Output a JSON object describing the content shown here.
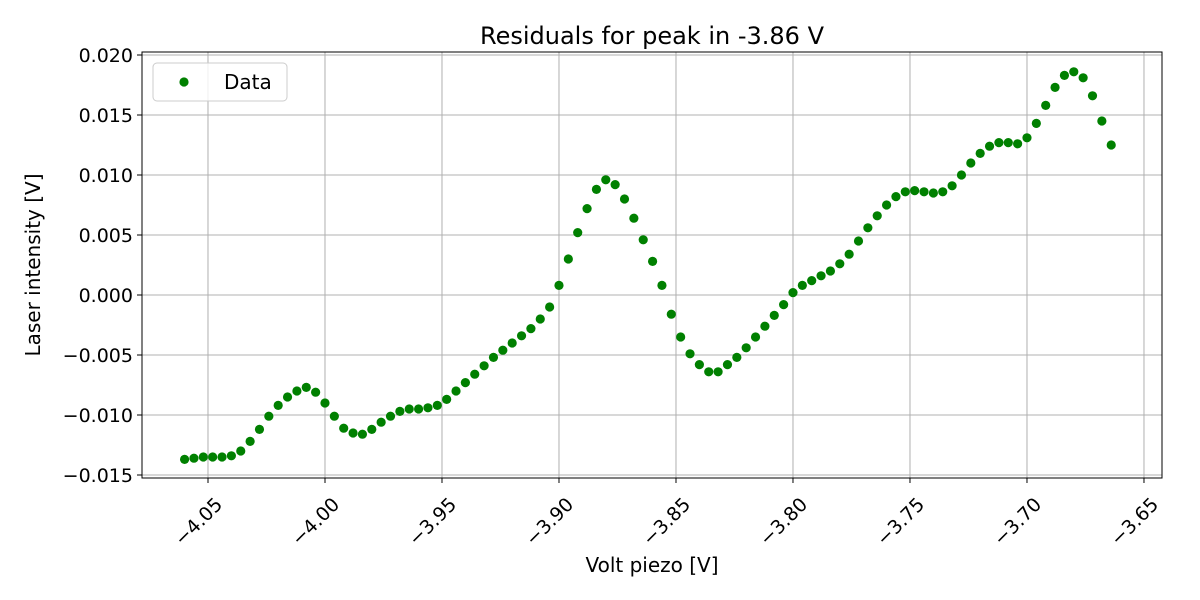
{
  "chart_data": {
    "type": "scatter",
    "title": "Residuals for peak in -3.86 V",
    "x_label": "Volt piezo [V]",
    "y_label": "Laser intensity [V]",
    "xlim": [
      -4.0782,
      -3.6423
    ],
    "ylim": [
      -0.01525,
      0.02025
    ],
    "grid": true,
    "legend": "upper left",
    "xticks": [
      {
        "value": -4.05,
        "label": "−4.05"
      },
      {
        "value": -4.0,
        "label": "−4.00"
      },
      {
        "value": -3.95,
        "label": "−3.95"
      },
      {
        "value": -3.9,
        "label": "−3.90"
      },
      {
        "value": -3.85,
        "label": "−3.85"
      },
      {
        "value": -3.8,
        "label": "−3.80"
      },
      {
        "value": -3.75,
        "label": "−3.75"
      },
      {
        "value": -3.7,
        "label": "−3.70"
      },
      {
        "value": -3.65,
        "label": "−3.65"
      }
    ],
    "yticks": [
      {
        "value": -0.015,
        "label": "−0.015"
      },
      {
        "value": -0.01,
        "label": "−0.010"
      },
      {
        "value": -0.005,
        "label": "−0.005"
      },
      {
        "value": 0,
        "label": "0.000"
      },
      {
        "value": 0.005,
        "label": "0.005"
      },
      {
        "value": 0.01,
        "label": "0.010"
      },
      {
        "value": 0.015,
        "label": "0.015"
      },
      {
        "value": 0.02,
        "label": "0.020"
      }
    ],
    "series": [
      {
        "name": "Data",
        "color": "#008000",
        "x": [
          -4.06,
          -4.056,
          -4.052,
          -4.048,
          -4.044,
          -4.04,
          -4.036,
          -4.032,
          -4.028,
          -4.024,
          -4.02,
          -4.016,
          -4.012,
          -4.008,
          -4.004,
          -4.0,
          -3.996,
          -3.992,
          -3.988,
          -3.984,
          -3.98,
          -3.976,
          -3.972,
          -3.968,
          -3.964,
          -3.96,
          -3.956,
          -3.952,
          -3.948,
          -3.944,
          -3.94,
          -3.936,
          -3.932,
          -3.928,
          -3.924,
          -3.92,
          -3.916,
          -3.912,
          -3.908,
          -3.904,
          -3.9,
          -3.896,
          -3.892,
          -3.888,
          -3.884,
          -3.88,
          -3.876,
          -3.872,
          -3.868,
          -3.864,
          -3.86,
          -3.856,
          -3.852,
          -3.848,
          -3.844,
          -3.84,
          -3.836,
          -3.832,
          -3.828,
          -3.824,
          -3.82,
          -3.816,
          -3.812,
          -3.808,
          -3.804,
          -3.8,
          -3.796,
          -3.792,
          -3.788,
          -3.784,
          -3.78,
          -3.776,
          -3.772,
          -3.768,
          -3.764,
          -3.76,
          -3.756,
          -3.752,
          -3.748,
          -3.744,
          -3.74,
          -3.736,
          -3.732,
          -3.728,
          -3.724,
          -3.72,
          -3.716,
          -3.712,
          -3.708,
          -3.704,
          -3.7,
          -3.696,
          -3.692,
          -3.688,
          -3.684,
          -3.68,
          -3.676,
          -3.672,
          -3.668,
          -3.664
        ],
        "values": [
          -0.0137,
          -0.0136,
          -0.0135,
          -0.0135,
          -0.0135,
          -0.0134,
          -0.013,
          -0.0122,
          -0.0112,
          -0.0101,
          -0.0092,
          -0.0085,
          -0.008,
          -0.0077,
          -0.0081,
          -0.009,
          -0.0101,
          -0.0111,
          -0.0115,
          -0.0116,
          -0.0112,
          -0.0106,
          -0.0101,
          -0.0097,
          -0.0095,
          -0.0095,
          -0.0094,
          -0.0092,
          -0.0087,
          -0.008,
          -0.0073,
          -0.0066,
          -0.0059,
          -0.0052,
          -0.0046,
          -0.004,
          -0.0034,
          -0.0028,
          -0.002,
          -0.001,
          0.0008,
          0.003,
          0.0052,
          0.0072,
          0.0088,
          0.0096,
          0.0092,
          0.008,
          0.0064,
          0.0046,
          0.0028,
          0.0008,
          -0.0016,
          -0.0035,
          -0.0049,
          -0.0058,
          -0.0064,
          -0.0064,
          -0.0058,
          -0.0052,
          -0.0044,
          -0.0035,
          -0.0026,
          -0.0017,
          -0.0008,
          0.0002,
          0.0008,
          0.0012,
          0.0016,
          0.002,
          0.0026,
          0.0034,
          0.0045,
          0.0056,
          0.0066,
          0.0075,
          0.0082,
          0.0086,
          0.0087,
          0.0086,
          0.0085,
          0.0086,
          0.0091,
          0.01,
          0.011,
          0.0118,
          0.0124,
          0.0127,
          0.0127,
          0.0126,
          0.0131,
          0.0143,
          0.0158,
          0.0173,
          0.0183,
          0.0186,
          0.0181,
          0.0166,
          0.0145,
          0.0125
        ]
      }
    ]
  }
}
